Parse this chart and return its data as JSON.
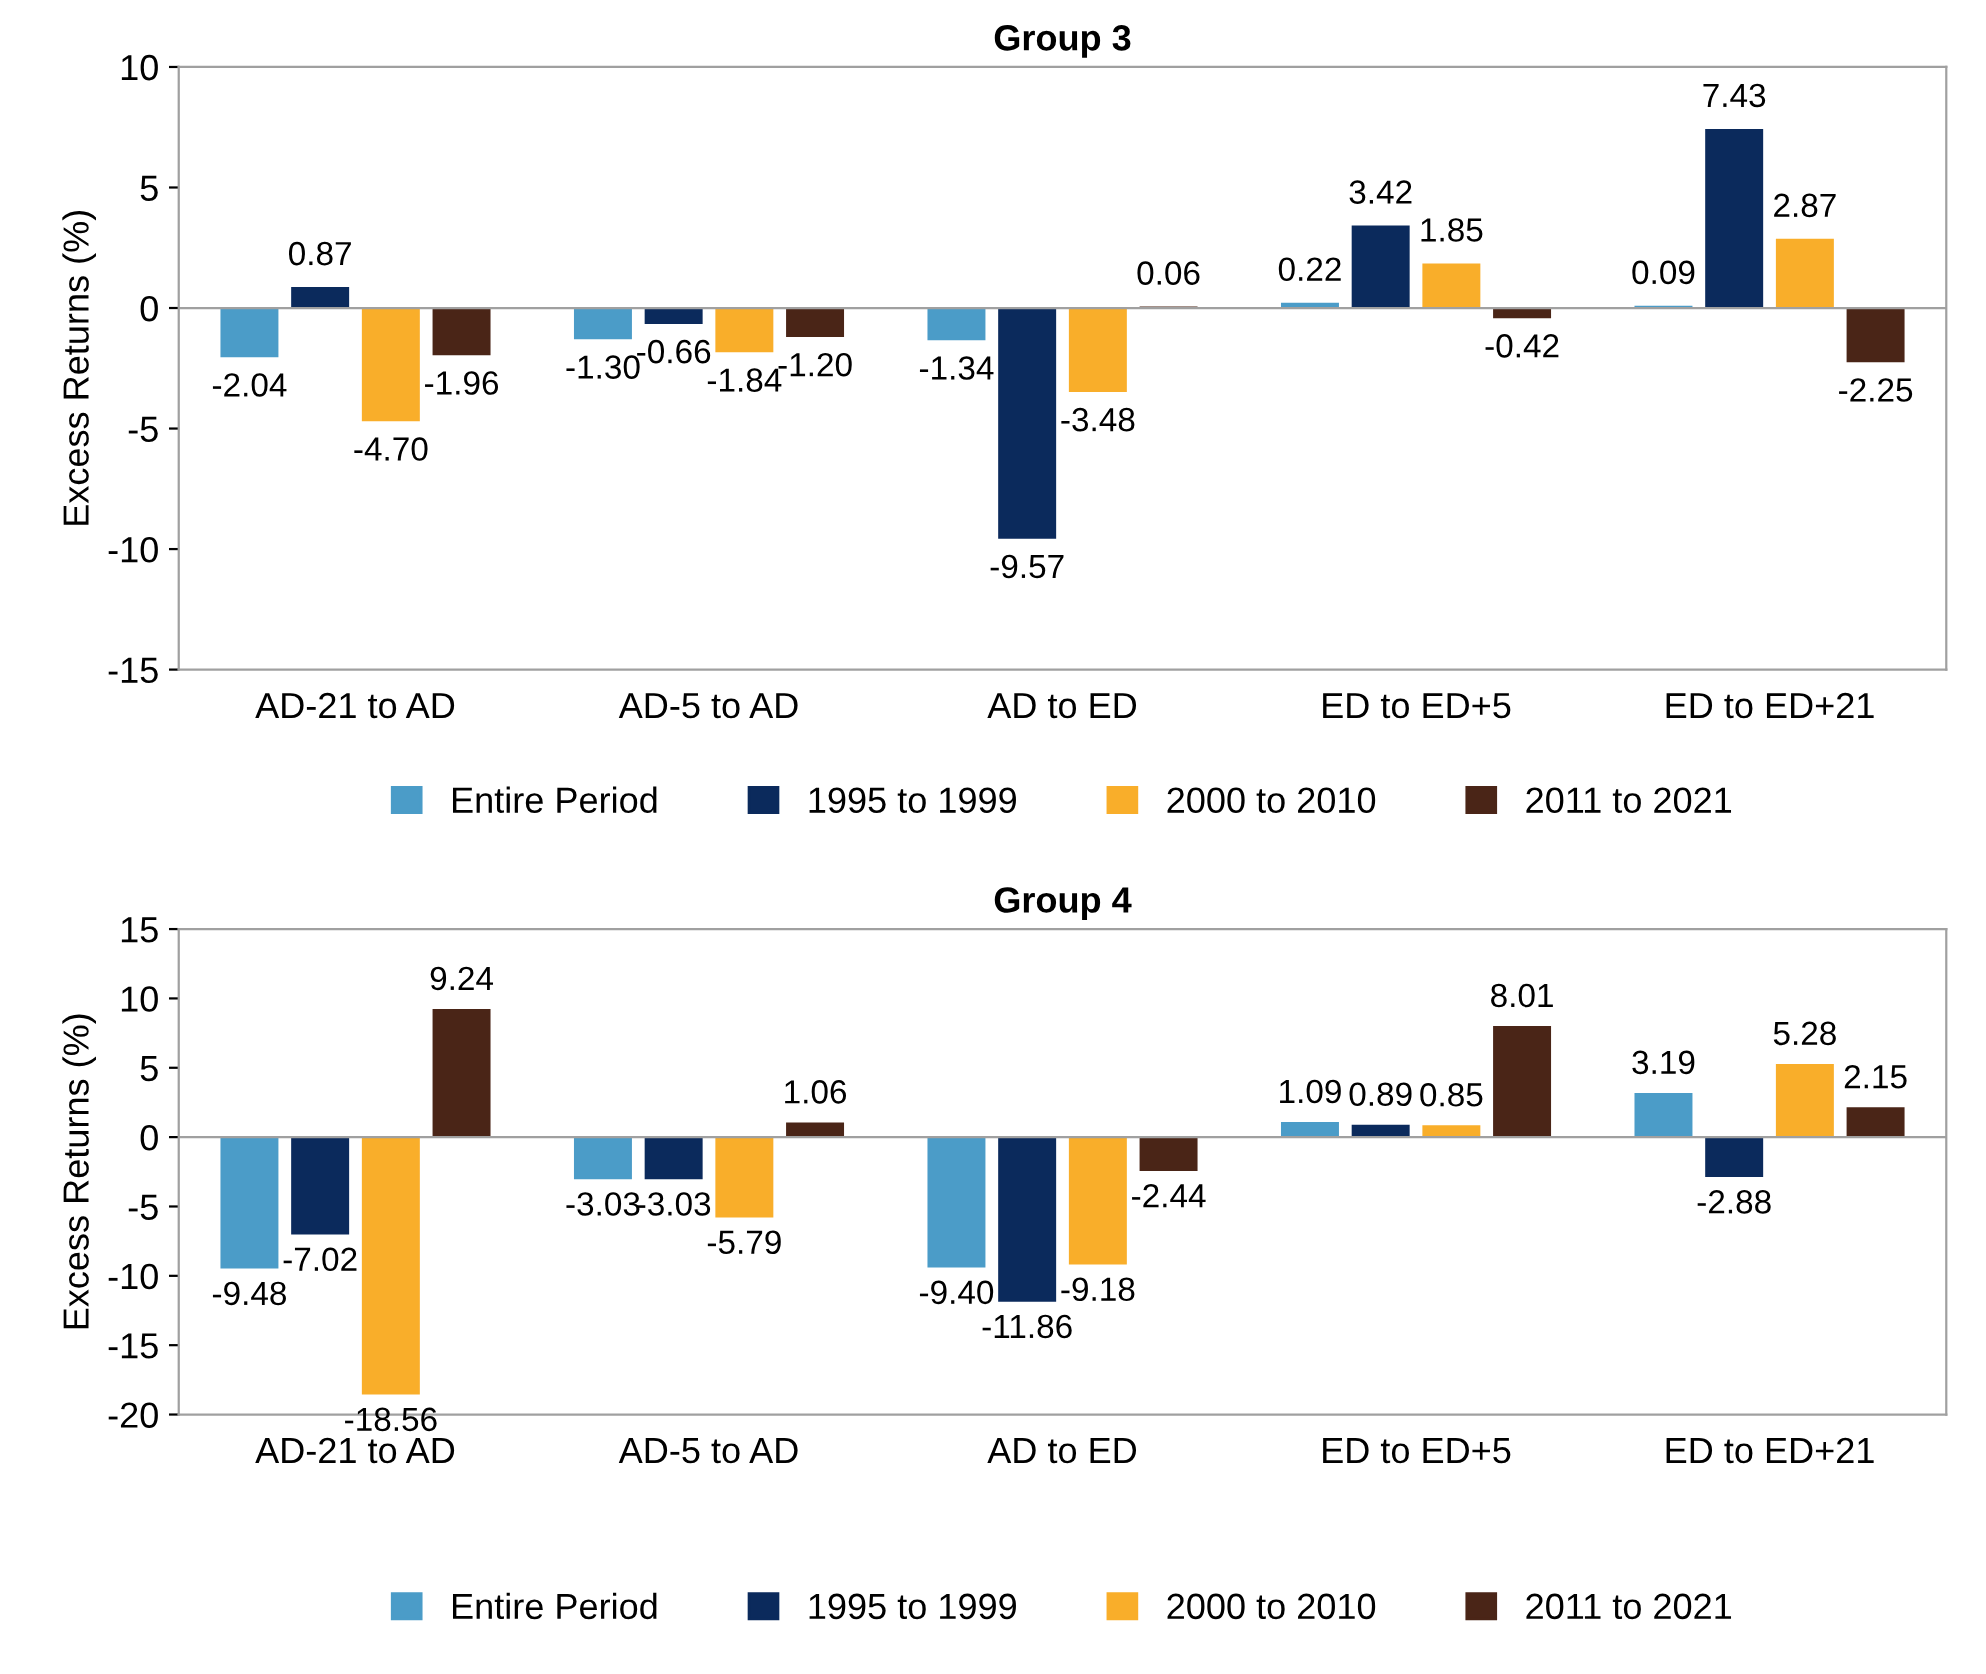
{
  "chart_data": [
    {
      "type": "bar",
      "title": "Group 3",
      "ylabel": "Excess Returns (%)",
      "categories": [
        "AD-21 to AD",
        "AD-5 to AD",
        "AD to ED",
        "ED to ED+5",
        "ED to ED+21"
      ],
      "ylim": [
        -15,
        10
      ],
      "yticks": [
        -15,
        -10,
        -5,
        0,
        5,
        10
      ],
      "grid": false,
      "ref_lines": [
        {
          "axis": "y",
          "value": 0,
          "color": "#a0a0a0"
        }
      ],
      "legend": "bottom",
      "series": [
        {
          "name": "Entire Period",
          "color": "#4b9cc8",
          "values": [
            -2.04,
            -1.3,
            -1.34,
            0.22,
            0.09
          ],
          "value_labels": [
            "-2.04",
            "-1.30",
            "-1.34",
            "0.22",
            "0.09"
          ]
        },
        {
          "name": "1995 to 1999",
          "color": "#0b2a5c",
          "values": [
            0.87,
            -0.66,
            -9.57,
            3.42,
            7.43
          ],
          "value_labels": [
            "0.87",
            "-0.66",
            "-9.57",
            "3.42",
            "7.43"
          ]
        },
        {
          "name": "2000 to 2010",
          "color": "#f9ae2a",
          "values": [
            -4.7,
            -1.84,
            -3.48,
            1.85,
            2.87
          ],
          "value_labels": [
            "-4.70",
            "-1.84",
            "-3.48",
            "1.85",
            "2.87"
          ]
        },
        {
          "name": "2011 to 2021",
          "color": "#4a2517",
          "values": [
            -1.96,
            -1.2,
            0.06,
            -0.42,
            -2.25
          ],
          "value_labels": [
            "-1.96",
            "-1.20",
            "0.06",
            "-0.42",
            "-2.25"
          ]
        }
      ]
    },
    {
      "type": "bar",
      "title": "Group 4",
      "ylabel": "Excess Returns (%)",
      "categories": [
        "AD-21 to AD",
        "AD-5 to AD",
        "AD to ED",
        "ED to ED+5",
        "ED to ED+21"
      ],
      "ylim": [
        -20,
        15
      ],
      "yticks": [
        -20,
        -15,
        -10,
        -5,
        0,
        5,
        10,
        15
      ],
      "grid": false,
      "ref_lines": [
        {
          "axis": "y",
          "value": 0,
          "color": "#a0a0a0"
        }
      ],
      "legend": "bottom",
      "series": [
        {
          "name": "Entire Period",
          "color": "#4b9cc8",
          "values": [
            -9.48,
            -3.03,
            -9.4,
            1.09,
            3.19
          ],
          "value_labels": [
            "-9.48",
            "-3.03",
            "-9.40",
            "1.09",
            "3.19"
          ]
        },
        {
          "name": "1995 to 1999",
          "color": "#0b2a5c",
          "values": [
            -7.02,
            -3.03,
            -11.86,
            0.89,
            -2.88
          ],
          "value_labels": [
            "-7.02",
            "-3.03",
            "-11.86",
            "0.89",
            "-2.88"
          ]
        },
        {
          "name": "2000 to 2010",
          "color": "#f9ae2a",
          "values": [
            -18.56,
            -5.79,
            -9.18,
            0.85,
            5.28
          ],
          "value_labels": [
            "-18.56",
            "-5.79",
            "-9.18",
            "0.85",
            "5.28"
          ]
        },
        {
          "name": "2011 to 2021",
          "color": "#4a2517",
          "values": [
            9.24,
            1.06,
            -2.44,
            8.01,
            2.15
          ],
          "value_labels": [
            "9.24",
            "1.06",
            "-2.44",
            "8.01",
            "2.15"
          ]
        }
      ]
    }
  ]
}
